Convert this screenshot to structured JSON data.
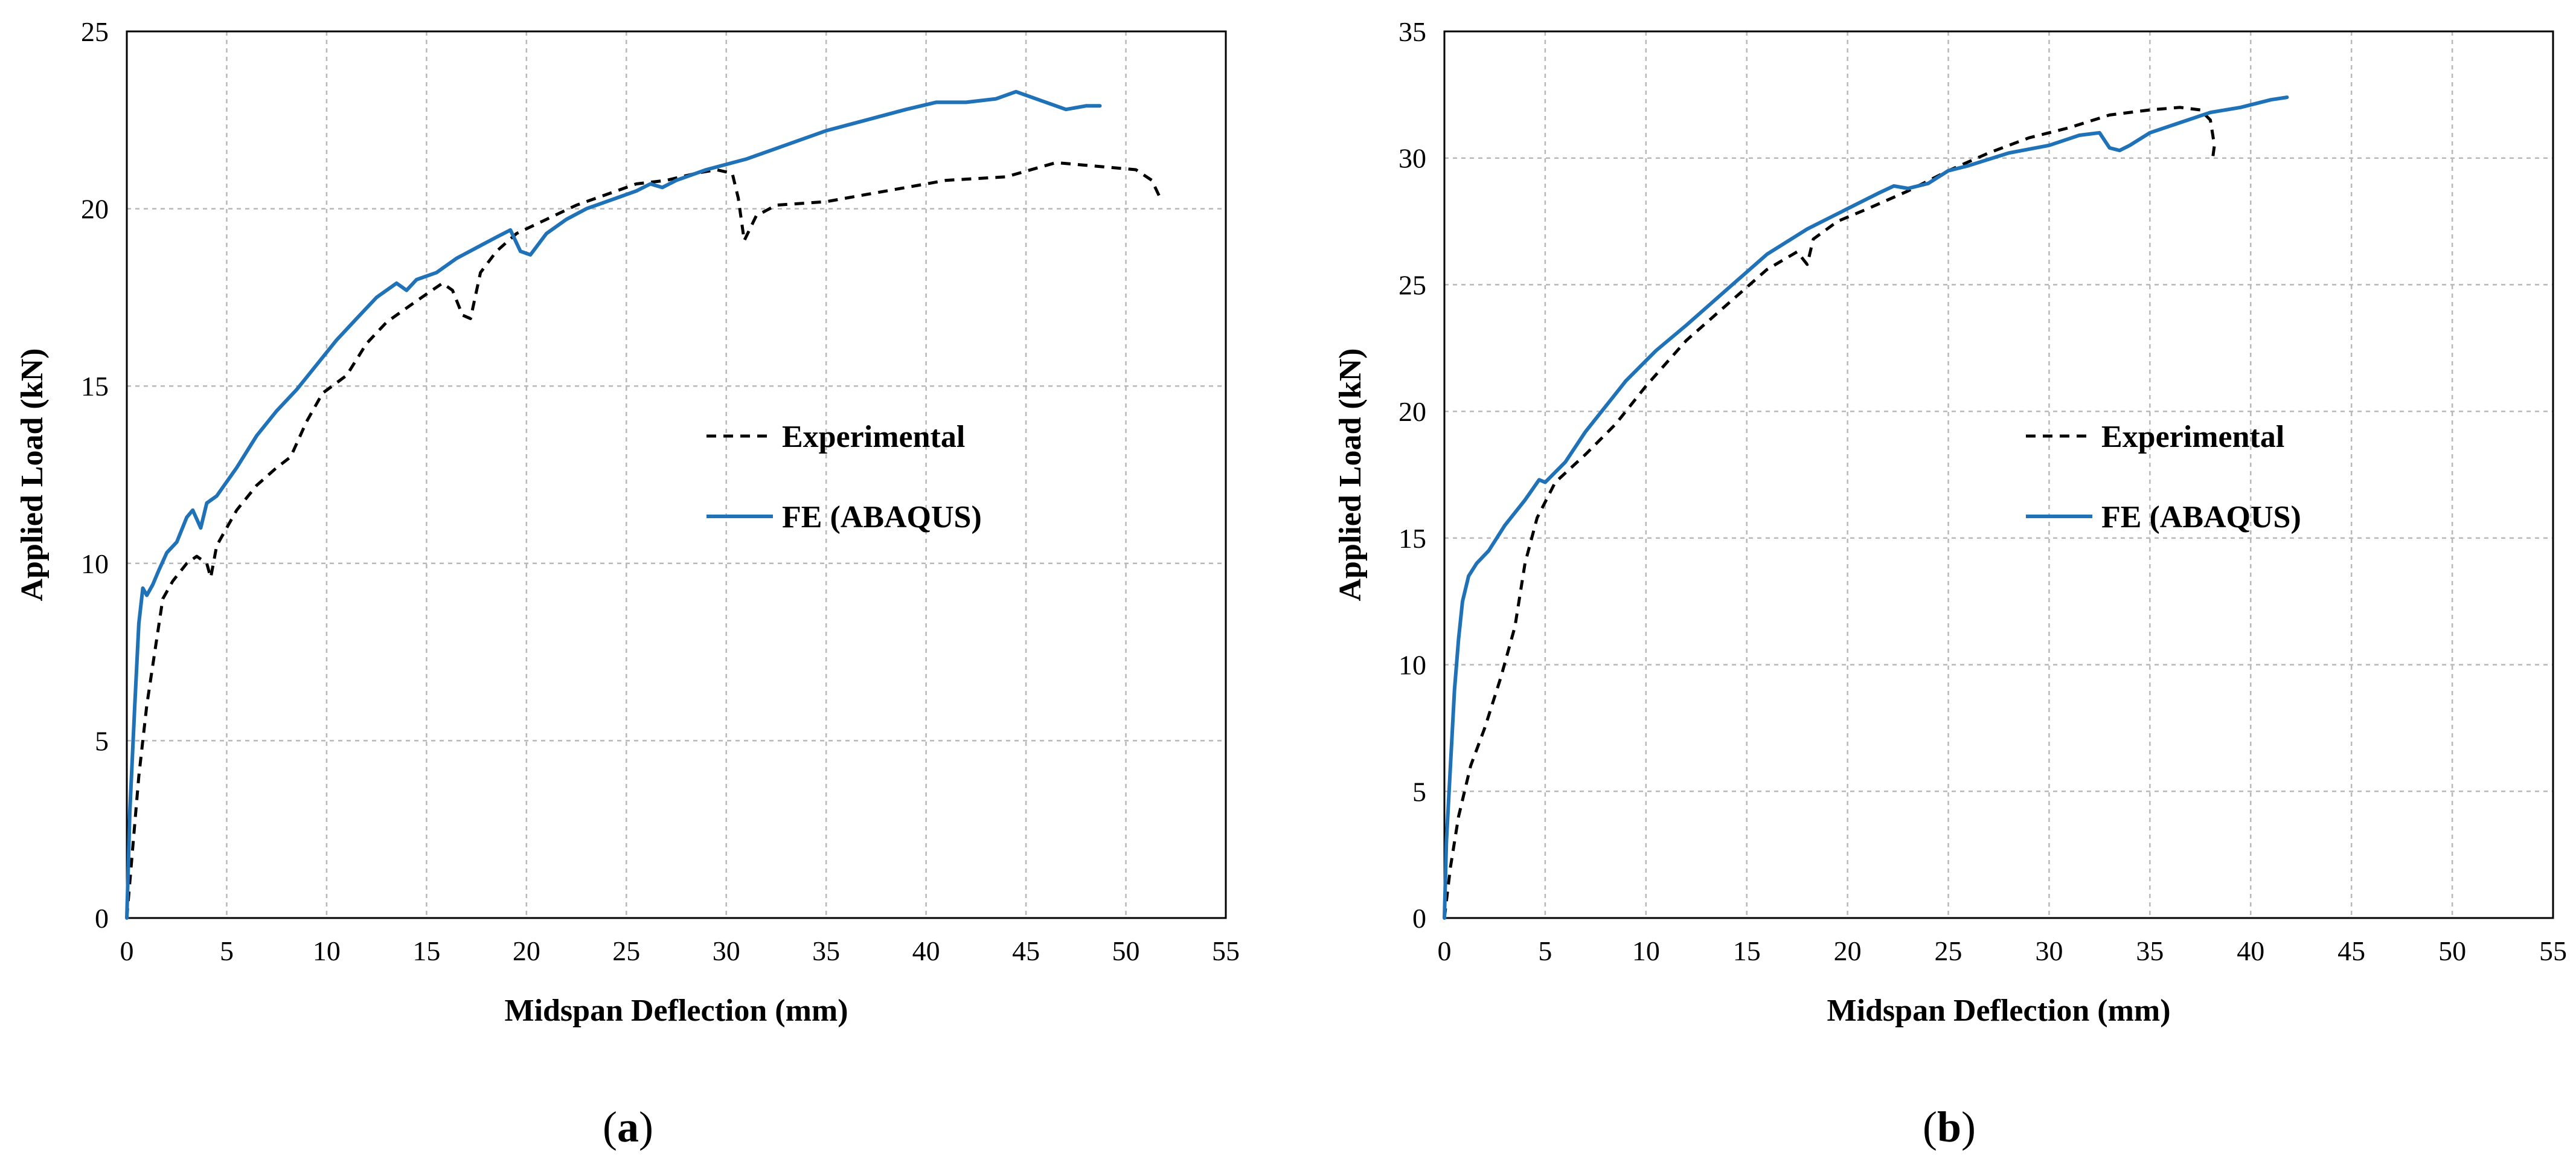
{
  "chart_data": [
    {
      "type": "line",
      "panel_label": "a",
      "caption_open": "(",
      "caption_close": ")",
      "xlabel": "Midspan Deflection (mm)",
      "ylabel": "Applied Load (kN)",
      "xlim": [
        0,
        55
      ],
      "ylim": [
        0,
        25
      ],
      "xticks": [
        0,
        5,
        10,
        15,
        20,
        25,
        30,
        35,
        40,
        45,
        50,
        55
      ],
      "yticks": [
        0,
        5,
        10,
        15,
        20,
        25
      ],
      "grid": true,
      "legend_position": "center-right",
      "series": [
        {
          "name": "Experimental",
          "color": "#000000",
          "style": "dashed",
          "points": [
            [
              0,
              0
            ],
            [
              0.3,
              2.0
            ],
            [
              0.6,
              4.0
            ],
            [
              1.0,
              6.0
            ],
            [
              1.4,
              7.5
            ],
            [
              1.8,
              9.0
            ],
            [
              2.3,
              9.5
            ],
            [
              3.0,
              10.0
            ],
            [
              3.5,
              10.2
            ],
            [
              4.0,
              10.0
            ],
            [
              4.2,
              9.6
            ],
            [
              4.5,
              10.5
            ],
            [
              5.5,
              11.5
            ],
            [
              6.5,
              12.2
            ],
            [
              7.5,
              12.7
            ],
            [
              8.2,
              13.0
            ],
            [
              9.0,
              14.0
            ],
            [
              9.8,
              14.8
            ],
            [
              11.0,
              15.3
            ],
            [
              12.0,
              16.2
            ],
            [
              13.0,
              16.8
            ],
            [
              14.5,
              17.4
            ],
            [
              15.8,
              17.9
            ],
            [
              16.3,
              17.7
            ],
            [
              16.8,
              17.0
            ],
            [
              17.2,
              16.9
            ],
            [
              17.7,
              18.2
            ],
            [
              18.5,
              18.8
            ],
            [
              19.5,
              19.3
            ],
            [
              21.0,
              19.7
            ],
            [
              22.5,
              20.1
            ],
            [
              24.0,
              20.4
            ],
            [
              25.5,
              20.7
            ],
            [
              27.0,
              20.8
            ],
            [
              28.5,
              21.0
            ],
            [
              29.5,
              21.1
            ],
            [
              30.3,
              21.0
            ],
            [
              30.6,
              20.3
            ],
            [
              30.9,
              19.1
            ],
            [
              31.5,
              19.8
            ],
            [
              32.5,
              20.1
            ],
            [
              35.0,
              20.2
            ],
            [
              37.0,
              20.4
            ],
            [
              39.0,
              20.6
            ],
            [
              41.0,
              20.8
            ],
            [
              44.0,
              20.9
            ],
            [
              46.5,
              21.3
            ],
            [
              48.5,
              21.2
            ],
            [
              50.5,
              21.1
            ],
            [
              51.3,
              20.8
            ],
            [
              51.8,
              20.2
            ]
          ]
        },
        {
          "name": "FE (ABAQUS)",
          "color": "#1f72b8",
          "style": "solid",
          "points": [
            [
              0,
              0
            ],
            [
              0.15,
              3.0
            ],
            [
              0.4,
              6.0
            ],
            [
              0.6,
              8.3
            ],
            [
              0.8,
              9.3
            ],
            [
              1.0,
              9.1
            ],
            [
              1.3,
              9.4
            ],
            [
              1.6,
              9.8
            ],
            [
              2.0,
              10.3
            ],
            [
              2.5,
              10.6
            ],
            [
              3.0,
              11.3
            ],
            [
              3.3,
              11.5
            ],
            [
              3.7,
              11.0
            ],
            [
              4.0,
              11.7
            ],
            [
              4.5,
              11.9
            ],
            [
              5.5,
              12.7
            ],
            [
              6.5,
              13.6
            ],
            [
              7.5,
              14.3
            ],
            [
              8.5,
              14.9
            ],
            [
              9.5,
              15.6
            ],
            [
              10.5,
              16.3
            ],
            [
              11.5,
              16.9
            ],
            [
              12.5,
              17.5
            ],
            [
              13.5,
              17.9
            ],
            [
              14.0,
              17.7
            ],
            [
              14.5,
              18.0
            ],
            [
              15.5,
              18.2
            ],
            [
              16.5,
              18.6
            ],
            [
              17.5,
              18.9
            ],
            [
              18.5,
              19.2
            ],
            [
              19.2,
              19.4
            ],
            [
              19.7,
              18.8
            ],
            [
              20.2,
              18.7
            ],
            [
              21.0,
              19.3
            ],
            [
              22.0,
              19.7
            ],
            [
              23.0,
              20.0
            ],
            [
              24.5,
              20.3
            ],
            [
              25.5,
              20.5
            ],
            [
              26.2,
              20.7
            ],
            [
              26.8,
              20.6
            ],
            [
              27.5,
              20.8
            ],
            [
              29.0,
              21.1
            ],
            [
              31.0,
              21.4
            ],
            [
              33.0,
              21.8
            ],
            [
              35.0,
              22.2
            ],
            [
              37.0,
              22.5
            ],
            [
              39.0,
              22.8
            ],
            [
              40.5,
              23.0
            ],
            [
              42.0,
              23.0
            ],
            [
              43.5,
              23.1
            ],
            [
              44.5,
              23.3
            ],
            [
              45.0,
              23.2
            ],
            [
              45.5,
              23.1
            ],
            [
              46.5,
              22.9
            ],
            [
              47.0,
              22.8
            ],
            [
              48.0,
              22.9
            ],
            [
              48.7,
              22.9
            ]
          ]
        }
      ]
    },
    {
      "type": "line",
      "panel_label": "b",
      "caption_open": "(",
      "caption_close": ")",
      "xlabel": "Midspan Deflection (mm)",
      "ylabel": "Applied Load (kN)",
      "xlim": [
        0,
        55
      ],
      "ylim": [
        0,
        35
      ],
      "xticks": [
        0,
        5,
        10,
        15,
        20,
        25,
        30,
        35,
        40,
        45,
        50,
        55
      ],
      "yticks": [
        0,
        5,
        10,
        15,
        20,
        25,
        30,
        35
      ],
      "grid": true,
      "legend_position": "center-right",
      "series": [
        {
          "name": "Experimental",
          "color": "#000000",
          "style": "dashed",
          "points": [
            [
              0,
              0
            ],
            [
              0.3,
              2.0
            ],
            [
              0.7,
              4.0
            ],
            [
              1.3,
              6.0
            ],
            [
              2.0,
              7.5
            ],
            [
              2.8,
              9.5
            ],
            [
              3.5,
              11.5
            ],
            [
              4.0,
              14.0
            ],
            [
              4.6,
              15.8
            ],
            [
              5.5,
              17.2
            ],
            [
              7.0,
              18.3
            ],
            [
              8.5,
              19.5
            ],
            [
              10.0,
              21.0
            ],
            [
              12.0,
              22.8
            ],
            [
              14.0,
              24.2
            ],
            [
              16.0,
              25.6
            ],
            [
              17.5,
              26.3
            ],
            [
              18.0,
              25.8
            ],
            [
              18.3,
              26.8
            ],
            [
              19.5,
              27.5
            ],
            [
              21.0,
              28.0
            ],
            [
              23.0,
              28.7
            ],
            [
              25.0,
              29.5
            ],
            [
              27.0,
              30.2
            ],
            [
              29.0,
              30.8
            ],
            [
              31.0,
              31.2
            ],
            [
              33.0,
              31.7
            ],
            [
              35.0,
              31.9
            ],
            [
              36.5,
              32.0
            ],
            [
              37.5,
              31.9
            ],
            [
              38.0,
              31.5
            ],
            [
              38.2,
              30.5
            ],
            [
              38.1,
              29.9
            ]
          ]
        },
        {
          "name": "FE (ABAQUS)",
          "color": "#1f72b8",
          "style": "solid",
          "points": [
            [
              0,
              0
            ],
            [
              0.1,
              3.0
            ],
            [
              0.3,
              6.0
            ],
            [
              0.5,
              9.0
            ],
            [
              0.7,
              11.0
            ],
            [
              0.9,
              12.5
            ],
            [
              1.2,
              13.5
            ],
            [
              1.6,
              14.0
            ],
            [
              2.2,
              14.5
            ],
            [
              3.0,
              15.5
            ],
            [
              4.0,
              16.5
            ],
            [
              4.7,
              17.3
            ],
            [
              5.0,
              17.2
            ],
            [
              6.0,
              18.0
            ],
            [
              7.0,
              19.2
            ],
            [
              8.0,
              20.2
            ],
            [
              9.0,
              21.2
            ],
            [
              10.5,
              22.4
            ],
            [
              12.0,
              23.4
            ],
            [
              14.0,
              24.8
            ],
            [
              16.0,
              26.2
            ],
            [
              18.0,
              27.2
            ],
            [
              20.0,
              28.0
            ],
            [
              21.5,
              28.6
            ],
            [
              22.3,
              28.9
            ],
            [
              23.0,
              28.8
            ],
            [
              24.0,
              29.0
            ],
            [
              25.0,
              29.5
            ],
            [
              26.0,
              29.7
            ],
            [
              28.0,
              30.2
            ],
            [
              30.0,
              30.5
            ],
            [
              31.5,
              30.9
            ],
            [
              32.5,
              31.0
            ],
            [
              33.0,
              30.4
            ],
            [
              33.5,
              30.3
            ],
            [
              34.0,
              30.5
            ],
            [
              35.0,
              31.0
            ],
            [
              36.5,
              31.4
            ],
            [
              38.0,
              31.8
            ],
            [
              39.5,
              32.0
            ],
            [
              41.0,
              32.3
            ],
            [
              41.8,
              32.4
            ]
          ]
        }
      ]
    }
  ]
}
